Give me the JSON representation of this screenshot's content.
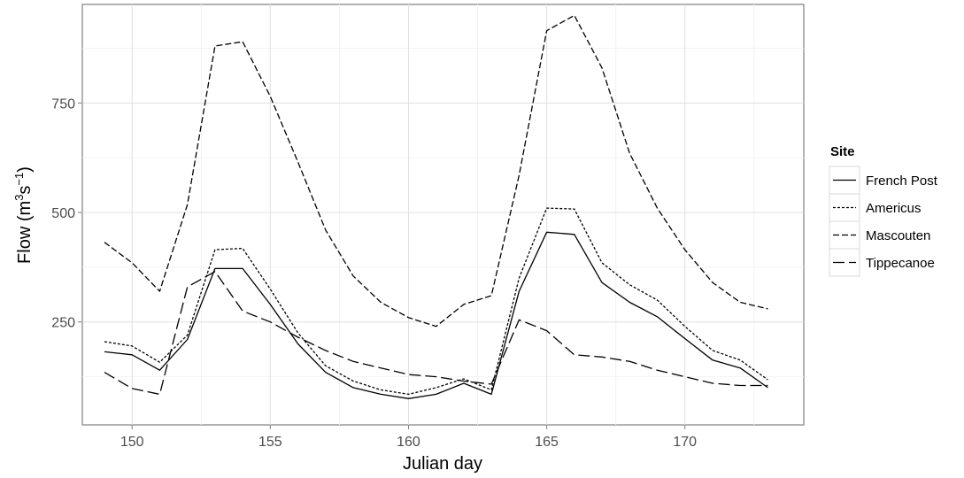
{
  "chart_data": {
    "type": "line",
    "xlabel": "Julian day",
    "ylabel_main": "Flow",
    "ylabel_unit_m": "m",
    "ylabel_unit_exp1": "3",
    "ylabel_unit_s": "s",
    "ylabel_unit_exp2": "−1",
    "xlim": [
      148.2,
      174.3
    ],
    "ylim": [
      15,
      975
    ],
    "xticks": [
      150,
      155,
      160,
      165,
      170
    ],
    "yticks": [
      250,
      500,
      750
    ],
    "grid": true,
    "legend_title": "Site",
    "legend_position": "right",
    "x": [
      149,
      150,
      151,
      152,
      153,
      154,
      155,
      156,
      157,
      158,
      159,
      160,
      161,
      162,
      163,
      164,
      165,
      166,
      167,
      168,
      169,
      170,
      171,
      172,
      173
    ],
    "series": [
      {
        "name": "French Post",
        "dash": "solid",
        "color": "#000000",
        "values": [
          182,
          175,
          140,
          210,
          372,
          372,
          290,
          200,
          135,
          100,
          85,
          75,
          85,
          110,
          85,
          320,
          455,
          450,
          340,
          295,
          262,
          212,
          163,
          145,
          100
        ]
      },
      {
        "name": "Americus",
        "dash": "dotted",
        "color": "#000000",
        "values": [
          205,
          195,
          158,
          220,
          415,
          418,
          325,
          225,
          150,
          115,
          95,
          85,
          100,
          120,
          95,
          350,
          510,
          508,
          385,
          335,
          300,
          240,
          185,
          163,
          118
        ]
      },
      {
        "name": "Mascouten",
        "dash": "dashed",
        "color": "#000000",
        "values": [
          432,
          385,
          320,
          518,
          880,
          890,
          765,
          615,
          460,
          355,
          295,
          260,
          240,
          290,
          310,
          585,
          915,
          950,
          830,
          635,
          510,
          415,
          340,
          295,
          280
        ]
      },
      {
        "name": "Tippecanoe",
        "dash": "longdash",
        "color": "#000000",
        "values": [
          135,
          98,
          85,
          330,
          365,
          275,
          250,
          215,
          185,
          160,
          145,
          130,
          125,
          115,
          108,
          255,
          230,
          175,
          170,
          160,
          140,
          125,
          110,
          105,
          105
        ]
      }
    ]
  }
}
